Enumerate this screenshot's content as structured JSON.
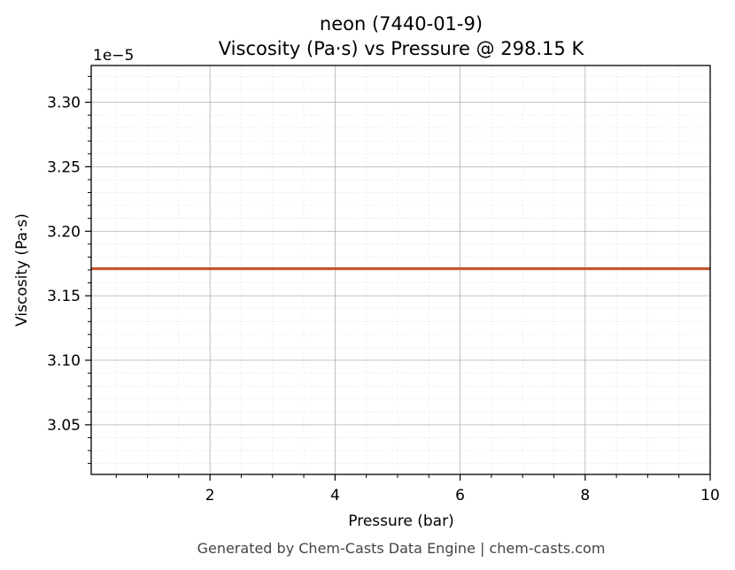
{
  "chart_data": {
    "type": "line",
    "title_line1": "neon (7440-01-9)",
    "title_line2": "Viscosity (Pa·s) vs Pressure @ 298.15 K",
    "xlabel": "Pressure (bar)",
    "ylabel": "Viscosity (Pa·s)",
    "offset_label": "1e−5",
    "xlim": [
      0.1,
      10
    ],
    "ylim": [
      3.0115,
      3.3285
    ],
    "x_ticks": [
      2,
      4,
      6,
      8,
      10
    ],
    "x_tick_labels": [
      "2",
      "4",
      "6",
      "8",
      "10"
    ],
    "y_ticks": [
      3.05,
      3.1,
      3.15,
      3.2,
      3.25,
      3.3
    ],
    "y_tick_labels": [
      "3.05",
      "3.10",
      "3.15",
      "3.20",
      "3.25",
      "3.30"
    ],
    "grid": true,
    "minor_grid": true,
    "series": [
      {
        "color": "#c8552b",
        "x": [
          0.1,
          1,
          2,
          3,
          4,
          5,
          6,
          7,
          8,
          9,
          10
        ],
        "y": [
          3.171,
          3.171,
          3.171,
          3.171,
          3.171,
          3.171,
          3.171,
          3.171,
          3.171,
          3.171,
          3.171
        ]
      }
    ]
  },
  "footer": "Generated by Chem-Casts Data Engine | chem-casts.com"
}
